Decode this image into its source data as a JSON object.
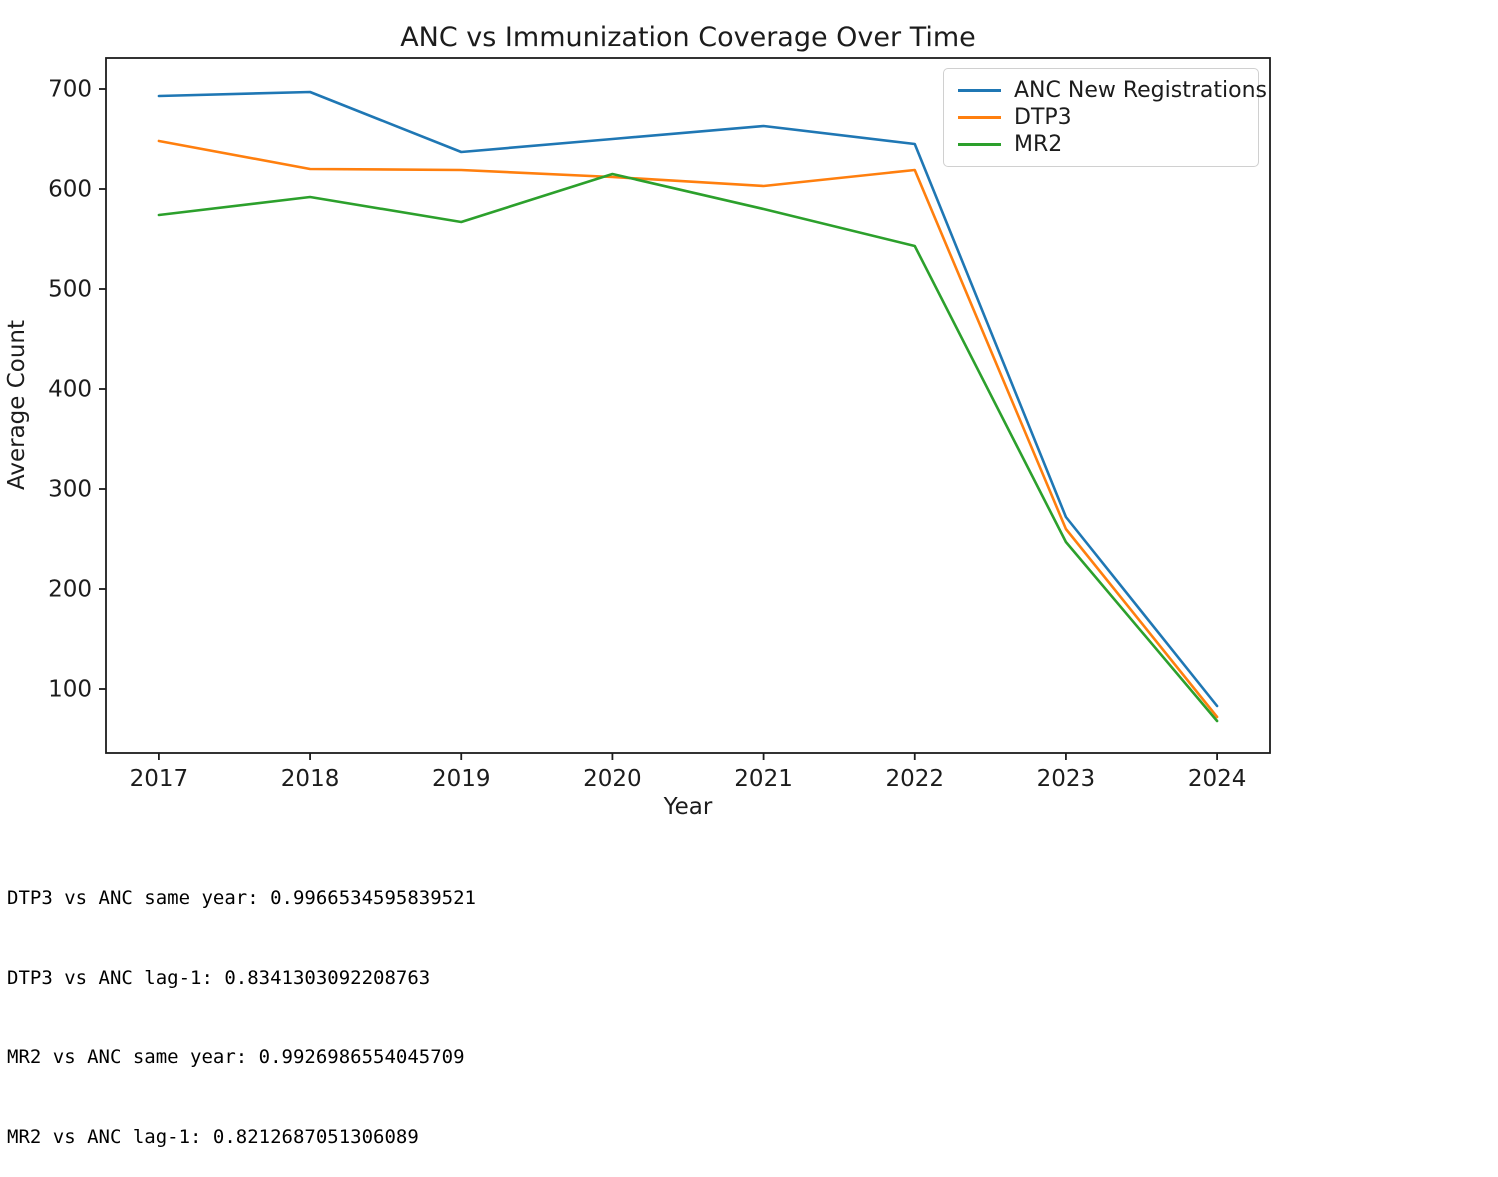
{
  "chart_data": {
    "type": "line",
    "title": "ANC vs Immunization Coverage Over Time",
    "xlabel": "Year",
    "ylabel": "Average Count",
    "x": [
      2017,
      2018,
      2019,
      2020,
      2021,
      2022,
      2023,
      2024
    ],
    "x_tick_labels": [
      "2017",
      "2018",
      "2019",
      "2020",
      "2021",
      "2022",
      "2023",
      "2024"
    ],
    "y_ticks": [
      100,
      200,
      300,
      400,
      500,
      600,
      700
    ],
    "xlim": [
      2016.65,
      2024.35
    ],
    "ylim": [
      36,
      731
    ],
    "grid": false,
    "legend_position": "upper right",
    "series": [
      {
        "name": "ANC New Registrations",
        "color": "#1f77b4",
        "values": [
          693,
          697,
          637,
          650,
          663,
          645,
          272,
          83
        ]
      },
      {
        "name": "DTP3",
        "color": "#ff7f0e",
        "values": [
          648,
          620,
          619,
          612,
          603,
          619,
          260,
          72
        ]
      },
      {
        "name": "MR2",
        "color": "#2ca02c",
        "values": [
          574,
          592,
          567,
          615,
          580,
          543,
          247,
          68
        ]
      }
    ]
  },
  "stats": {
    "lines": [
      "DTP3 vs ANC same year: 0.9966534595839521",
      "DTP3 vs ANC lag-1: 0.8341303092208763",
      "MR2 vs ANC same year: 0.9926986554045709",
      "MR2 vs ANC lag-1: 0.8212687051306089"
    ]
  }
}
